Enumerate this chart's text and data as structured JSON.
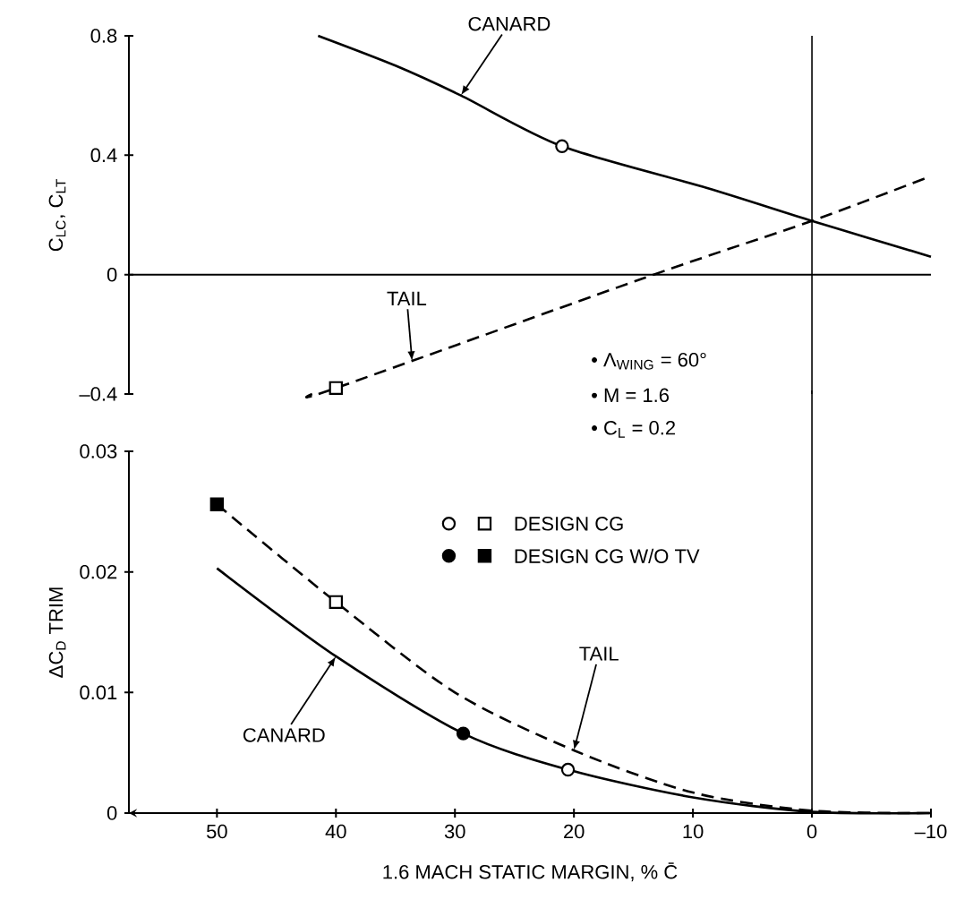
{
  "chart_data": [
    {
      "type": "line",
      "ylabel": "C$_{LC}$, C$_{LT}$",
      "xlim": [
        57.4,
        -10
      ],
      "ylim": [
        -0.4,
        0.8
      ],
      "yticks": [
        0.8,
        0.4,
        0,
        {
          "value": -0.4,
          "label": "–0.4"
        }
      ],
      "tick_labels": "y",
      "series": [
        {
          "color": "#000000",
          "line_style": "solid",
          "x": [
            41.5,
            35,
            29.5,
            21,
            8.8,
            0,
            -10
          ],
          "values": [
            0.8,
            0.7,
            0.6,
            0.43,
            0.29,
            0.18,
            0.06
          ]
        },
        {
          "color": "#000000",
          "line_style": "dashed",
          "x": [
            42,
            40,
            13.3,
            0,
            -10
          ],
          "values": [
            -0.4,
            -0.38,
            0,
            0.18,
            0.33
          ]
        },
        {
          "type": "scatter",
          "marker": "circle",
          "color": "#ffffff",
          "x": [
            21
          ],
          "values": [
            0.43
          ]
        },
        {
          "type": "scatter",
          "marker": "square",
          "color": "#ffffff",
          "x": [
            40
          ],
          "values": [
            -0.38
          ]
        }
      ],
      "ref_lines": [
        {
          "axis": "y",
          "value": 0
        },
        {
          "axis": "x",
          "value": 0
        }
      ],
      "annotations": [
        {
          "text": "CANARD",
          "x": 29.5,
          "y": 0.6
        },
        {
          "text": "TAIL",
          "x": 33.6,
          "y": -0.29
        },
        "• Λ$_{WING}$ = 60°",
        "• M = 1.6",
        "• C$_{L}$ = 0.2"
      ]
    },
    {
      "type": "line",
      "xlabel": "1.6 MACH STATIC MARGIN, % C̄",
      "ylabel": "ΔC$_{D}$ TRIM",
      "xlim": [
        57.4,
        -10
      ],
      "ylim": [
        0,
        0.03
      ],
      "xticks": [
        50,
        40,
        30,
        20,
        10,
        0,
        {
          "value": -10,
          "label": "–10"
        }
      ],
      "yticks": [
        0,
        0.01,
        0.02,
        0.03
      ],
      "legend": "top",
      "series": [
        {
          "color": "#000000",
          "line_style": "solid",
          "x": [
            50,
            40,
            29.3,
            20.5,
            10,
            0,
            -10
          ],
          "values": [
            0.0203,
            0.013,
            0.0066,
            0.0036,
            0.0013,
            0.0001,
            0
          ]
        },
        {
          "color": "#000000",
          "line_style": "dashed",
          "x": [
            50,
            40,
            30,
            20,
            10,
            0,
            -10
          ],
          "values": [
            0.0256,
            0.0175,
            0.01,
            0.0052,
            0.0017,
            0.0002,
            0
          ]
        },
        {
          "type": "scatter",
          "marker": "circle",
          "color": "#ffffff",
          "x": [
            20.5
          ],
          "values": [
            0.0036
          ]
        },
        {
          "type": "scatter",
          "name": "DESIGN CG",
          "marker": "square",
          "color": "#ffffff",
          "x": [
            40
          ],
          "values": [
            0.0175
          ]
        },
        {
          "type": "scatter",
          "marker": "circle",
          "color": "#000000",
          "x": [
            29.3
          ],
          "values": [
            0.0066
          ]
        },
        {
          "type": "scatter",
          "name": "DESIGN CG W/O TV",
          "marker": "square",
          "color": "#000000",
          "x": [
            50
          ],
          "values": [
            0.0256
          ]
        }
      ],
      "ref_lines": [
        {
          "axis": "x",
          "value": 0
        }
      ],
      "annotations": [
        {
          "text": "TAIL",
          "x": 20,
          "y": 0.0052
        },
        {
          "text": "CANARD",
          "x": 40,
          "y": 0.013
        }
      ]
    }
  ]
}
